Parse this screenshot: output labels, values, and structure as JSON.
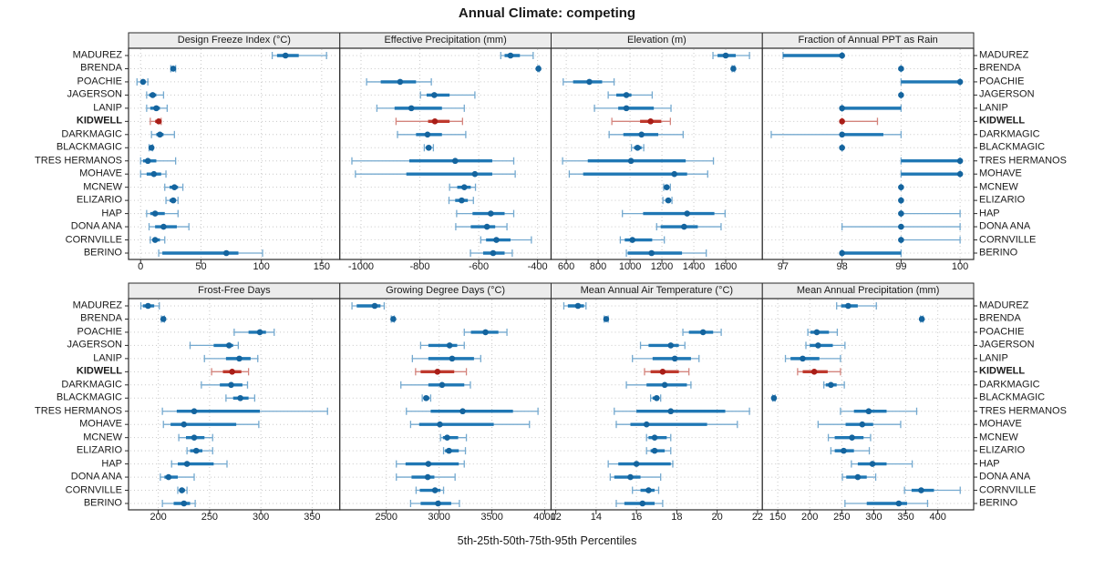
{
  "title": "Annual Climate: competing",
  "caption": "5th-25th-50th-75th-95th Percentiles",
  "highlight_site": "KIDWELL",
  "colors": {
    "blue_dot": "#14649e",
    "blue_thick": "#1f77b4",
    "blue_thin": "#74a9cf",
    "red_dot": "#a91e18",
    "red_thick": "#bf3a2e",
    "red_thin": "#d4847d",
    "grid": "#c8c8c8",
    "border": "#2a2a2a",
    "strip_bg": "#ececec",
    "text": "#1a1a1a"
  },
  "chart_data": {
    "type": "scatter",
    "mark": "percentile-interval-dotplot",
    "percentile_levels": [
      5,
      25,
      50,
      75,
      95
    ],
    "legend_note": "5th-25th-50th-75th-95th Percentiles",
    "sites": [
      "MADUREZ",
      "BRENDA",
      "POACHIE",
      "JAGERSON",
      "LANIP",
      "KIDWELL",
      "DARKMAGIC",
      "BLACKMAGIC",
      "TRES HERMANOS",
      "MOHAVE",
      "MCNEW",
      "ELIZARIO",
      "HAP",
      "DONA ANA",
      "CORNVILLE",
      "BERINO"
    ],
    "panels": [
      {
        "title": "Design Freeze Index (°C)",
        "grid_row": 0,
        "grid_col": 0,
        "ticks": [
          0,
          50,
          100,
          150
        ],
        "range": [
          -10,
          165
        ],
        "values": [
          [
            109,
            113,
            120,
            131,
            154
          ],
          [
            25,
            26,
            27,
            28,
            29
          ],
          [
            -3,
            0,
            2,
            4,
            6
          ],
          [
            5,
            7,
            10,
            13,
            19
          ],
          [
            5,
            8,
            13,
            16,
            22
          ],
          [
            8,
            12,
            15,
            16,
            17
          ],
          [
            9,
            13,
            16,
            19,
            28
          ],
          [
            7,
            8,
            9,
            9,
            10
          ],
          [
            0,
            2,
            6,
            13,
            29
          ],
          [
            0,
            5,
            11,
            17,
            21
          ],
          [
            20,
            24,
            28,
            31,
            35
          ],
          [
            21,
            24,
            27,
            29,
            31
          ],
          [
            5,
            8,
            12,
            20,
            31
          ],
          [
            7,
            12,
            19,
            30,
            40
          ],
          [
            8,
            10,
            12,
            16,
            20
          ],
          [
            15,
            18,
            71,
            81,
            101
          ]
        ]
      },
      {
        "title": "Effective Precipitation (mm)",
        "grid_row": 0,
        "grid_col": 1,
        "ticks": [
          -1000,
          -800,
          -600,
          -400
        ],
        "range": [
          -1072,
          -354
        ],
        "values": [
          [
            -525,
            -512,
            -492,
            -460,
            -415
          ],
          [
            -399,
            -398,
            -397,
            -396,
            -394
          ],
          [
            -981,
            -933,
            -867,
            -813,
            -761
          ],
          [
            -798,
            -777,
            -751,
            -699,
            -613
          ],
          [
            -946,
            -886,
            -829,
            -725,
            -649
          ],
          [
            -881,
            -772,
            -749,
            -699,
            -655
          ],
          [
            -876,
            -813,
            -774,
            -725,
            -644
          ],
          [
            -785,
            -779,
            -770,
            -761,
            -754
          ],
          [
            -1031,
            -836,
            -680,
            -554,
            -481
          ],
          [
            -1019,
            -846,
            -613,
            -554,
            -476
          ],
          [
            -699,
            -673,
            -649,
            -627,
            -611
          ],
          [
            -701,
            -680,
            -658,
            -637,
            -618
          ],
          [
            -675,
            -621,
            -559,
            -512,
            -481
          ],
          [
            -678,
            -627,
            -572,
            -544,
            -504
          ],
          [
            -593,
            -575,
            -540,
            -492,
            -421
          ],
          [
            -628,
            -585,
            -551,
            -512,
            -486
          ]
        ]
      },
      {
        "title": "Elevation (m)",
        "grid_row": 0,
        "grid_col": 2,
        "ticks": [
          600,
          800,
          1000,
          1200,
          1400,
          1600
        ],
        "range": [
          505,
          1830
        ],
        "values": [
          [
            1520,
            1549,
            1600,
            1663,
            1749
          ],
          [
            1640,
            1645,
            1648,
            1651,
            1656
          ],
          [
            581,
            643,
            745,
            825,
            900
          ],
          [
            863,
            914,
            977,
            1009,
            1139
          ],
          [
            777,
            926,
            977,
            1149,
            1257
          ],
          [
            886,
            1063,
            1129,
            1196,
            1253
          ],
          [
            869,
            958,
            1072,
            1177,
            1333
          ],
          [
            1009,
            1025,
            1047,
            1072,
            1086
          ],
          [
            577,
            735,
            1006,
            1349,
            1523
          ],
          [
            619,
            706,
            1278,
            1358,
            1487
          ],
          [
            1211,
            1219,
            1230,
            1246,
            1253
          ],
          [
            1206,
            1222,
            1240,
            1250,
            1263
          ],
          [
            952,
            1082,
            1358,
            1529,
            1596
          ],
          [
            1167,
            1192,
            1339,
            1425,
            1571
          ],
          [
            939,
            967,
            1015,
            1139,
            1215
          ],
          [
            977,
            986,
            1135,
            1326,
            1478
          ]
        ]
      },
      {
        "title": "Fraction of Annual PPT as Rain",
        "grid_row": 0,
        "grid_col": 3,
        "ticks": [
          97,
          98,
          99,
          100
        ],
        "range": [
          96.65,
          100.23
        ],
        "values": [
          [
            97,
            97,
            98,
            98,
            98
          ],
          [
            99,
            99,
            99,
            99,
            99
          ],
          [
            99,
            99,
            100,
            100,
            100
          ],
          [
            99,
            99,
            99,
            99,
            99
          ],
          [
            98,
            98,
            98,
            99,
            99
          ],
          [
            98,
            98,
            98,
            98,
            98.6
          ],
          [
            96.8,
            98,
            98,
            98.7,
            99
          ],
          [
            98,
            98,
            98,
            98,
            98
          ],
          [
            99,
            99,
            100,
            100,
            100
          ],
          [
            99,
            99,
            100,
            100,
            100
          ],
          [
            99,
            99,
            99,
            99,
            99
          ],
          [
            99,
            99,
            99,
            99,
            99
          ],
          [
            99,
            99,
            99,
            99,
            100
          ],
          [
            98,
            99,
            99,
            99,
            100
          ],
          [
            99,
            99,
            99,
            99,
            100
          ],
          [
            98,
            98,
            98,
            99,
            99
          ]
        ]
      },
      {
        "title": "Frost-Free Days",
        "grid_row": 1,
        "grid_col": 0,
        "ticks": [
          200,
          250,
          300,
          350
        ],
        "range": [
          171,
          377
        ],
        "values": [
          [
            183,
            185,
            190,
            196,
            201
          ],
          [
            203,
            204,
            205,
            205,
            206
          ],
          [
            274,
            288,
            299,
            305,
            313
          ],
          [
            231,
            254,
            269,
            273,
            278
          ],
          [
            245,
            266,
            279,
            290,
            297
          ],
          [
            252,
            263,
            272,
            281,
            288
          ],
          [
            242,
            260,
            271,
            282,
            287
          ],
          [
            266,
            273,
            280,
            288,
            294
          ],
          [
            204,
            218,
            235,
            299,
            365
          ],
          [
            205,
            212,
            225,
            276,
            298
          ],
          [
            220,
            227,
            235,
            245,
            253
          ],
          [
            228,
            231,
            237,
            243,
            253
          ],
          [
            213,
            219,
            228,
            254,
            267
          ],
          [
            202,
            206,
            210,
            219,
            235
          ],
          [
            219,
            221,
            223,
            226,
            228
          ],
          [
            204,
            215,
            225,
            231,
            236
          ]
        ]
      },
      {
        "title": "Growing Degree Days (°C)",
        "grid_row": 1,
        "grid_col": 1,
        "ticks": [
          2500,
          3000,
          3500,
          4000
        ],
        "range": [
          2060,
          4060
        ],
        "values": [
          [
            2175,
            2220,
            2390,
            2445,
            2480
          ],
          [
            2547,
            2558,
            2566,
            2572,
            2576
          ],
          [
            3238,
            3301,
            3439,
            3561,
            3642
          ],
          [
            2825,
            2898,
            3099,
            3171,
            3238
          ],
          [
            2747,
            2898,
            3123,
            3330,
            3394
          ],
          [
            2777,
            2825,
            2984,
            3143,
            3258
          ],
          [
            2638,
            2898,
            3028,
            3238,
            3296
          ],
          [
            2840,
            2855,
            2877,
            2907,
            2920
          ],
          [
            2690,
            2920,
            3223,
            3699,
            3936
          ],
          [
            2730,
            2811,
            3007,
            3517,
            3855
          ],
          [
            3013,
            3036,
            3076,
            3180,
            3258
          ],
          [
            3042,
            3056,
            3093,
            3186,
            3249
          ],
          [
            2595,
            2682,
            2898,
            3186,
            3238
          ],
          [
            2595,
            2739,
            2892,
            2955,
            3151
          ],
          [
            2782,
            2817,
            2961,
            3013,
            3042
          ],
          [
            2730,
            2825,
            2990,
            3114,
            3192
          ]
        ]
      },
      {
        "title": "Mean Annual Air Temperature (°C)",
        "grid_row": 1,
        "grid_col": 2,
        "ticks": [
          12,
          14,
          16,
          18,
          20,
          22
        ],
        "range": [
          11.77,
          22.24
        ],
        "values": [
          [
            12.4,
            12.6,
            13.1,
            13.4,
            13.5
          ],
          [
            14.4,
            14.4,
            14.5,
            14.5,
            14.6
          ],
          [
            18.3,
            18.6,
            19.3,
            19.8,
            20.2
          ],
          [
            16.2,
            16.6,
            17.7,
            18.1,
            18.4
          ],
          [
            15.8,
            16.8,
            17.9,
            18.7,
            19.1
          ],
          [
            16.4,
            16.7,
            17.3,
            18.1,
            18.6
          ],
          [
            15.5,
            16.5,
            17.4,
            18.5,
            18.7
          ],
          [
            16.7,
            16.8,
            17.0,
            17.1,
            17.2
          ],
          [
            14.9,
            16.0,
            17.7,
            20.4,
            21.6
          ],
          [
            15.0,
            15.7,
            16.5,
            19.5,
            21.0
          ],
          [
            16.5,
            16.6,
            16.9,
            17.5,
            17.7
          ],
          [
            16.5,
            16.7,
            16.9,
            17.4,
            17.7
          ],
          [
            14.6,
            15.1,
            16.0,
            17.7,
            17.8
          ],
          [
            14.7,
            14.9,
            15.7,
            16.2,
            17.2
          ],
          [
            15.8,
            16.2,
            16.6,
            16.9,
            17.1
          ],
          [
            15.0,
            15.4,
            16.3,
            16.9,
            17.3
          ]
        ]
      },
      {
        "title": "Mean Annual Precipitation (mm)",
        "grid_row": 1,
        "grid_col": 3,
        "ticks": [
          150,
          200,
          250,
          300,
          350,
          400
        ],
        "range": [
          126,
          456
        ],
        "values": [
          [
            242,
            249,
            260,
            275,
            304
          ],
          [
            373,
            374,
            375,
            376,
            377
          ],
          [
            197,
            201,
            211,
            230,
            243
          ],
          [
            194,
            200,
            213,
            236,
            255
          ],
          [
            162,
            170,
            189,
            215,
            248
          ],
          [
            181,
            189,
            207,
            228,
            248
          ],
          [
            222,
            225,
            233,
            242,
            254
          ],
          [
            142,
            143,
            144,
            145,
            146
          ],
          [
            248,
            269,
            292,
            320,
            367
          ],
          [
            213,
            256,
            282,
            299,
            342
          ],
          [
            229,
            239,
            266,
            284,
            295
          ],
          [
            233,
            239,
            253,
            269,
            293
          ],
          [
            265,
            275,
            298,
            320,
            360
          ],
          [
            251,
            257,
            275,
            289,
            303
          ],
          [
            348,
            359,
            374,
            394,
            435
          ],
          [
            255,
            289,
            339,
            352,
            384
          ]
        ]
      }
    ]
  }
}
